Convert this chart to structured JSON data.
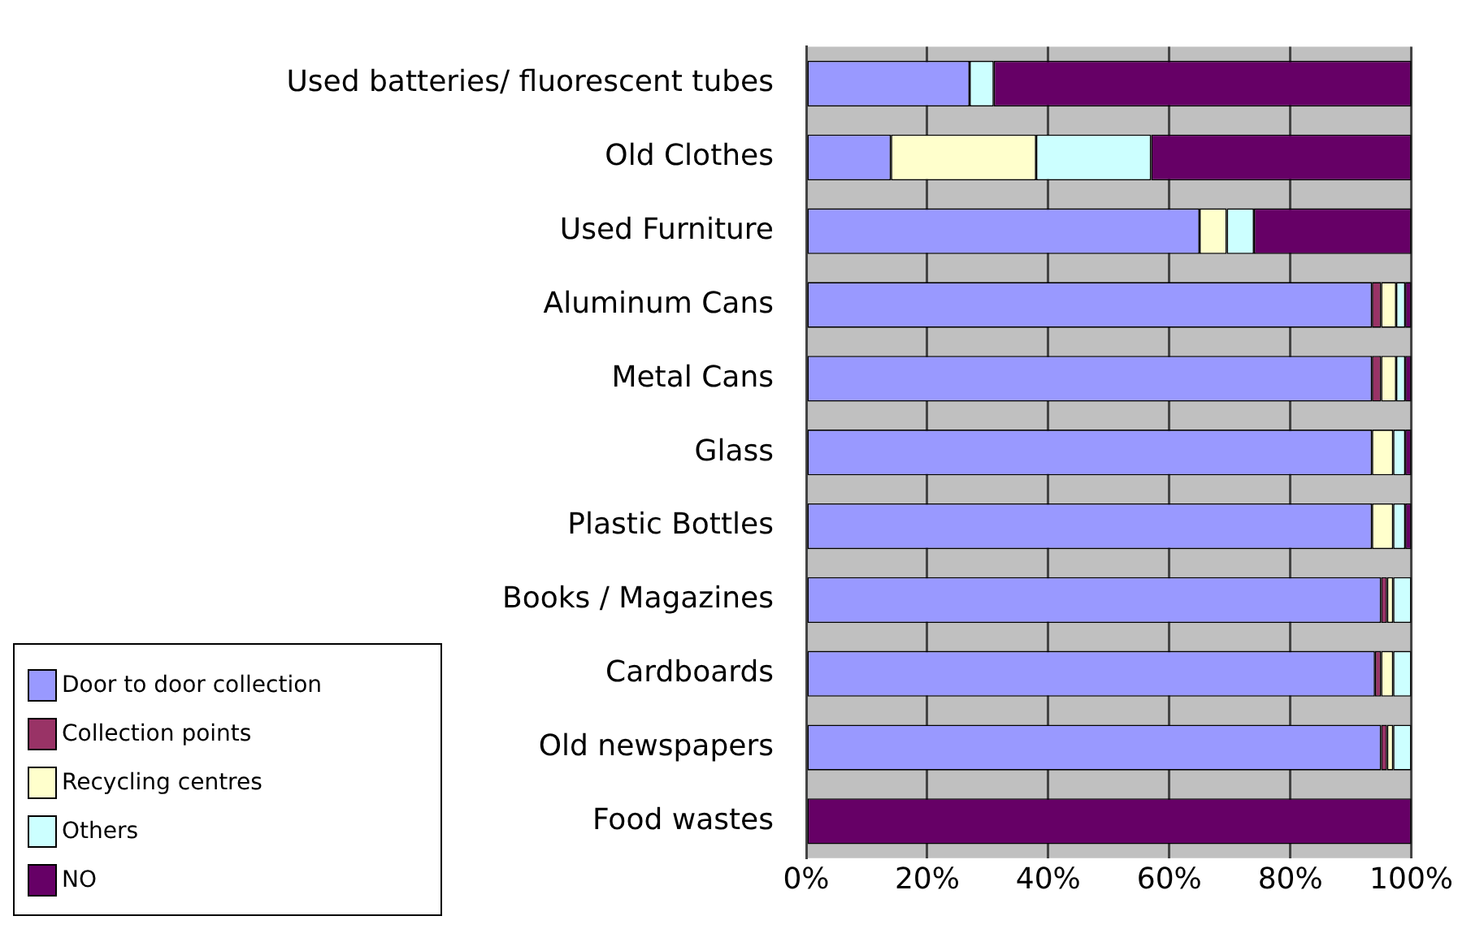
{
  "chart_data": {
    "type": "bar",
    "orientation": "horizontal",
    "stacked": true,
    "categories": [
      "Used batteries/ fluorescent tubes",
      "Old Clothes",
      "Used Furniture",
      "Aluminum Cans",
      "Metal Cans",
      "Glass",
      "Plastic Bottles",
      "Books / Magazines",
      "Cardboards",
      "Old newspapers",
      "Food wastes"
    ],
    "series": [
      {
        "name": "Door to door collection",
        "color": "#9999ff",
        "values": [
          27,
          14,
          65,
          93.5,
          93.5,
          93.5,
          93.5,
          95,
          94,
          95,
          0
        ]
      },
      {
        "name": "Collection points",
        "color": "#993366",
        "values": [
          0,
          0,
          0,
          1.5,
          1.5,
          0,
          0,
          1,
          1,
          1,
          0
        ]
      },
      {
        "name": "Recycling centres",
        "color": "#ffffcc",
        "values": [
          0,
          24,
          4.5,
          2.5,
          2.5,
          3.5,
          3.5,
          1,
          2,
          1,
          0
        ]
      },
      {
        "name": "Others",
        "color": "#ccffff",
        "values": [
          4,
          19,
          4.5,
          1.5,
          1.5,
          2,
          2,
          3,
          3,
          3,
          0
        ]
      },
      {
        "name": "NO",
        "color": "#660066",
        "values": [
          69,
          43,
          26,
          1,
          1,
          1,
          1,
          0,
          0,
          0,
          100
        ]
      }
    ],
    "xlim": [
      0,
      100
    ],
    "xticks": [
      {
        "value": 0,
        "label": "0%"
      },
      {
        "value": 20,
        "label": "20%"
      },
      {
        "value": 40,
        "label": "40%"
      },
      {
        "value": 60,
        "label": "60%"
      },
      {
        "value": 80,
        "label": "80%"
      },
      {
        "value": 100,
        "label": "100%"
      }
    ],
    "grid": "x",
    "legend": "bottom left"
  }
}
